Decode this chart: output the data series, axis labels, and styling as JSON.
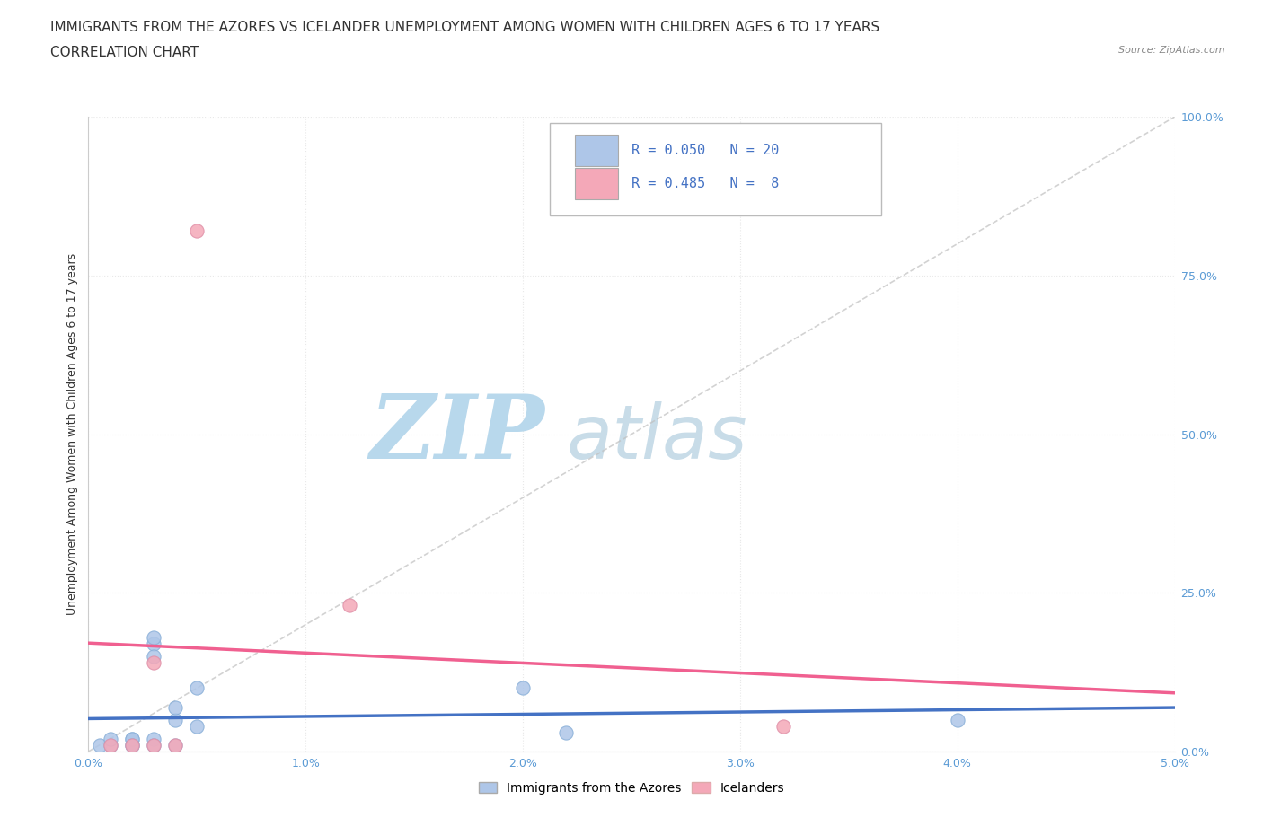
{
  "title_line1": "IMMIGRANTS FROM THE AZORES VS ICELANDER UNEMPLOYMENT AMONG WOMEN WITH CHILDREN AGES 6 TO 17 YEARS",
  "title_line2": "CORRELATION CHART",
  "source_text": "Source: ZipAtlas.com",
  "ylabel": "Unemployment Among Women with Children Ages 6 to 17 years",
  "xlim": [
    0.0,
    0.05
  ],
  "ylim": [
    0.0,
    1.0
  ],
  "xtick_labels": [
    "0.0%",
    "1.0%",
    "2.0%",
    "3.0%",
    "4.0%",
    "5.0%"
  ],
  "xtick_vals": [
    0.0,
    0.01,
    0.02,
    0.03,
    0.04,
    0.05
  ],
  "ytick_labels": [
    "0.0%",
    "25.0%",
    "50.0%",
    "75.0%",
    "100.0%"
  ],
  "ytick_vals": [
    0.0,
    0.25,
    0.5,
    0.75,
    1.0
  ],
  "azores_x": [
    0.0005,
    0.001,
    0.001,
    0.002,
    0.002,
    0.002,
    0.002,
    0.003,
    0.003,
    0.003,
    0.003,
    0.003,
    0.004,
    0.004,
    0.004,
    0.005,
    0.005,
    0.02,
    0.022,
    0.04
  ],
  "azores_y": [
    0.01,
    0.01,
    0.02,
    0.01,
    0.02,
    0.02,
    0.01,
    0.02,
    0.17,
    0.15,
    0.18,
    0.01,
    0.05,
    0.01,
    0.07,
    0.04,
    0.1,
    0.1,
    0.03,
    0.05
  ],
  "icelanders_x": [
    0.001,
    0.002,
    0.003,
    0.003,
    0.004,
    0.005,
    0.012,
    0.032
  ],
  "icelanders_y": [
    0.01,
    0.01,
    0.14,
    0.01,
    0.01,
    0.82,
    0.23,
    0.04
  ],
  "azores_color": "#aec6e8",
  "icelanders_color": "#f4a8b8",
  "azores_R": 0.05,
  "azores_N": 20,
  "icelanders_R": 0.485,
  "icelanders_N": 8,
  "trend_azores_color": "#4472c4",
  "trend_icelanders_color": "#f06090",
  "trend_diagonal_color": "#c0c0c0",
  "background_color": "#ffffff",
  "grid_color": "#e8e8e8",
  "watermark_color": "#cce4f0",
  "title_fontsize": 11,
  "axis_label_fontsize": 9,
  "tick_fontsize": 9
}
